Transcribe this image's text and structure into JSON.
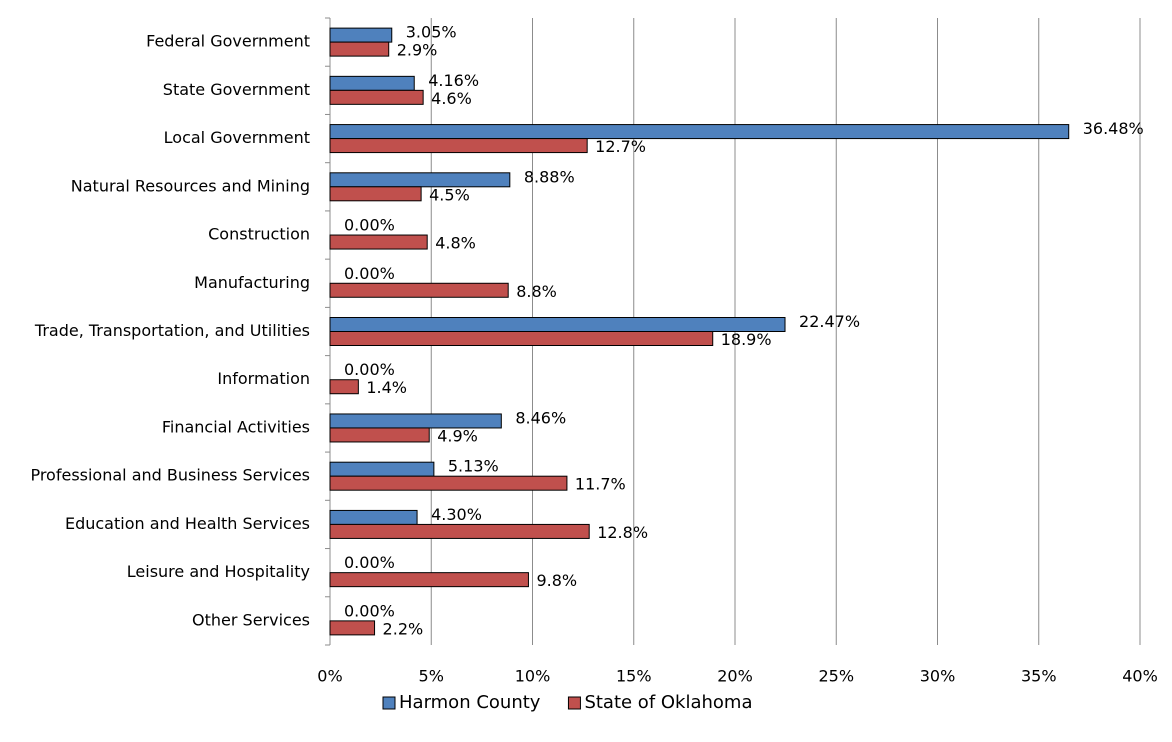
{
  "chart_data": {
    "type": "hbar",
    "categories": [
      "Federal Government",
      "State Government",
      "Local Government",
      "Natural Resources and Mining",
      "Construction",
      "Manufacturing",
      "Trade, Transportation, and Utilities",
      "Information",
      "Financial Activities",
      "Professional and Business Services",
      "Education and Health Services",
      "Leisure and Hospitality",
      "Other Services"
    ],
    "series": [
      {
        "name": "Harmon County",
        "color": "#4f81bd",
        "values": [
          3.05,
          4.16,
          36.48,
          8.88,
          0,
          0,
          22.47,
          0,
          8.46,
          5.13,
          4.3,
          0,
          0
        ],
        "value_labels": [
          "3.05%",
          "4.16%",
          "36.48%",
          "8.88%",
          "0.00%",
          "0.00%",
          "22.47%",
          "0.00%",
          "8.46%",
          "5.13%",
          "4.30%",
          "0.00%",
          "0.00%"
        ]
      },
      {
        "name": "State of Oklahoma",
        "color": "#c0504d",
        "values": [
          2.9,
          4.6,
          12.7,
          4.5,
          4.8,
          8.8,
          18.9,
          1.4,
          4.9,
          11.7,
          12.8,
          9.8,
          2.2
        ],
        "value_labels": [
          "2.9%",
          "4.6%",
          "12.7%",
          "4.5%",
          "4.8%",
          "8.8%",
          "18.9%",
          "1.4%",
          "4.9%",
          "11.7%",
          "12.8%",
          "9.8%",
          "2.2%"
        ]
      }
    ],
    "xlim": [
      0,
      40
    ],
    "xticks": [
      {
        "value": 0,
        "label": "0%"
      },
      {
        "value": 5,
        "label": "5%"
      },
      {
        "value": 10,
        "label": "10%"
      },
      {
        "value": 15,
        "label": "15%"
      },
      {
        "value": 20,
        "label": "20%"
      },
      {
        "value": 25,
        "label": "25%"
      },
      {
        "value": 30,
        "label": "30%"
      },
      {
        "value": 35,
        "label": "35%"
      },
      {
        "value": 40,
        "label": "40%"
      }
    ],
    "grid": true,
    "legend": "bottom"
  }
}
